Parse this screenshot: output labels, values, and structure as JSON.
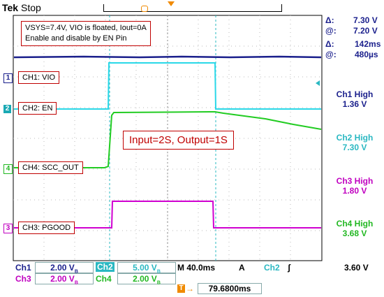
{
  "header": {
    "brand": "Tek",
    "status": "Stop"
  },
  "cursor_readout": {
    "delta_v": "7.30 V",
    "at_v": "7.20 V",
    "delta_t": "142ms",
    "at_t": "480µs"
  },
  "annotation_info": {
    "line1": "VSYS=7.4V, VIO is floated, Iout=0A",
    "line2": "Enable and disable by EN Pin"
  },
  "annotation_ratio": "Input=2S, Output=1S",
  "channel_labels": {
    "ch1": "CH1: VIO",
    "ch2": "CH2: EN",
    "ch4": "CH4: SCC_OUT",
    "ch3": "CH3: PGOOD"
  },
  "channel_markers": {
    "ch1": "1",
    "ch2": "2",
    "ch4": "4",
    "ch3": "3"
  },
  "high_readouts": [
    {
      "label": "Ch1 High",
      "value": "1.36 V",
      "color": "#1a1f8c"
    },
    {
      "label": "Ch2 High",
      "value": "7.30 V",
      "color": "#2ab8c2"
    },
    {
      "label": "Ch3 High",
      "value": "1.80 V",
      "color": "#c000c0"
    },
    {
      "label": "Ch4 High",
      "value": "3.68 V",
      "color": "#22b822"
    }
  ],
  "bottom": {
    "ch1": {
      "name": "Ch1",
      "scale": "2.00 V"
    },
    "ch2": {
      "name": "Ch2",
      "scale": "5.00 V"
    },
    "ch3": {
      "name": "Ch3",
      "scale": "2.00 V"
    },
    "ch4": {
      "name": "Ch4",
      "scale": "2.00 V"
    },
    "bw": "B",
    "timebase": "M 40.0ms",
    "trigger_mode": "A",
    "trigger_source": "Ch2",
    "trigger_slope": "ʃ",
    "trigger_level": "3.60 V",
    "trigger_position": "79.6800ms"
  },
  "colors": {
    "ch1": "#1a1f8c",
    "ch2": "#2ad8e8",
    "ch3": "#d000d0",
    "ch4": "#22cc22",
    "annotation_border": "#c00000"
  }
}
